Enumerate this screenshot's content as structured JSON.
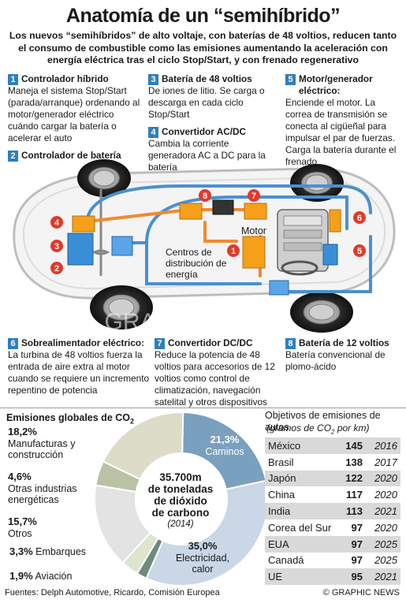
{
  "title": "Anatomía de un “semihíbrido”",
  "subtitle": "Los nuevos “semihíbridos” de alto voltaje, con baterías de 48 voltios, reducen tanto el consumo de combustible como las emisiones aumentando la aceleración con energía eléctrica tras el ciclo Stop/Start, y con frenado regenerativo",
  "callouts": [
    {
      "num": "1",
      "title": "Controlador híbrido",
      "text": "Maneja el sistema Stop/Start (parada/arranque) ordenando al motor/generador eléctrico cuándo cargar la batería o acelerar el auto"
    },
    {
      "num": "2",
      "title": "Controlador de batería",
      "text": ""
    },
    {
      "num": "3",
      "title": "Batería de 48 voltios",
      "text": "De iones de litio. Se carga o descarga en cada ciclo Stop/Start"
    },
    {
      "num": "4",
      "title": "Convertidor AC/DC",
      "text": "Cambia la corriente generadora AC a DC para la batería"
    },
    {
      "num": "5",
      "title": "Motor/generador eléctrico:",
      "text": "Enciende el motor. La correa de transmisión se conecta al cigüeñal para impulsar el par de fuerzas. Carga la batería durante el frenado"
    },
    {
      "num": "6",
      "title": "Sobrealimentador eléctrico:",
      "text": "La turbina de 48 voltios fuerza la entrada de aire extra al motor cuando se requiere un incremento repentino de potencia"
    },
    {
      "num": "7",
      "title": "Convertidor DC/DC",
      "text": "Reduce la potencia de 48 voltios para accesorios de 12 voltios como control de climatización, navegación satelital y otros dispositivos"
    },
    {
      "num": "8",
      "title": "Batería de 12 voltios",
      "text": "Batería convencional de plomo-ácido"
    }
  ],
  "diagram": {
    "motor_label": "Motor",
    "centers_label": "Centros de distribución de energía",
    "watermark": "GRAPHIC NEWS",
    "markers": [
      "1",
      "2",
      "3",
      "4",
      "5",
      "6",
      "7",
      "8"
    ],
    "colors": {
      "blue_line": "#4a90d0",
      "orange_line": "#f08a30",
      "red_marker": "#e03a2a",
      "car_body": "#f2f2f2"
    }
  },
  "emissions": {
    "title_prefix": "Emisiones globales de CO",
    "title_sub": "2",
    "center": {
      "line1": "35.700m",
      "line2": "de toneladas",
      "line3": "de dióxido",
      "line4": "de carbono",
      "year": "(2014)"
    },
    "slices": [
      {
        "label": "Caminos",
        "value": 21.3,
        "display": "21,3%",
        "color": "#7aa0c0"
      },
      {
        "label": "Electricidad, calor",
        "value": 35.0,
        "display": "35,0%",
        "color": "#c9d7e6"
      },
      {
        "label": "Aviación",
        "value": 1.9,
        "display": "1,9%",
        "color": "#6d8a7a"
      },
      {
        "label": "Embarques",
        "value": 3.3,
        "display": "3,3%",
        "color": "#dde5cc"
      },
      {
        "label": "Otros",
        "value": 15.7,
        "display": "15,7%",
        "color": "#e3e3e3"
      },
      {
        "label": "Otras industrias energéticas",
        "value": 4.6,
        "display": "4,6%",
        "color": "#b9c2a4"
      },
      {
        "label": "Manufacturas y construcción",
        "value": 18.2,
        "display": "18,2%",
        "color": "#dcdcc8"
      }
    ]
  },
  "objectives": {
    "title_prefix": "Objetivos de emisiones de autos",
    "subtitle_prefix": "(gramos de CO",
    "subtitle_sub": "2",
    "subtitle_suffix": " por km)",
    "rows": [
      {
        "country": "México",
        "value": "145",
        "year": "2016"
      },
      {
        "country": "Brasil",
        "value": "138",
        "year": "2017"
      },
      {
        "country": "Japón",
        "value": "122",
        "year": "2020"
      },
      {
        "country": "China",
        "value": "117",
        "year": "2020"
      },
      {
        "country": "India",
        "value": "113",
        "year": "2021"
      },
      {
        "country": "Corea del Sur",
        "value": "97",
        "year": "2020"
      },
      {
        "country": "EUA",
        "value": "97",
        "year": "2025"
      },
      {
        "country": "Canadá",
        "value": "97",
        "year": "2025"
      },
      {
        "country": "UE",
        "value": "95",
        "year": "2021"
      }
    ]
  },
  "footer": {
    "sources": "Fuentes: Delph Automotive, Ricardo, Comisión Europea",
    "credit": "© GRAPHIC NEWS"
  }
}
